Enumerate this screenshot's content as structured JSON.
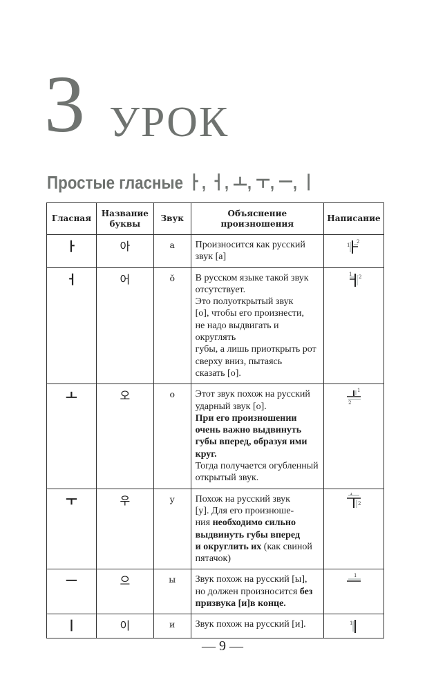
{
  "header": {
    "lesson_number": "3",
    "lesson_word": "УРОК"
  },
  "subtitle": "Простые гласные ㅏ, ㅓ, ㅗ, ㅜ, ㅡ, ㅣ",
  "table": {
    "columns": [
      "Гласная",
      "Название буквы",
      "Звук",
      "Объяснение произношения",
      "Написание"
    ],
    "rows": [
      {
        "vowel": "ㅏ",
        "name": "아",
        "sound": "а",
        "explanation": [
          {
            "text": "Произносится как русский\nзвук [а]",
            "bold": false
          }
        ],
        "strokes": [
          "1",
          "2"
        ],
        "stroke_shape": "a"
      },
      {
        "vowel": "ㅓ",
        "name": "어",
        "sound": "ŏ",
        "explanation": [
          {
            "text": "В русском языке такой звук\nотсутствует.\nЭто полуоткрытый звук\n[о], чтобы его произнести,\nне надо выдвигать и округлять\nгубы, а лишь приоткрыть рот\nсверху вниз, пытаясь\nсказать [о].",
            "bold": false
          }
        ],
        "strokes": [
          "1",
          "2"
        ],
        "stroke_shape": "eo"
      },
      {
        "vowel": "ㅗ",
        "name": "오",
        "sound": "о",
        "explanation": [
          {
            "text": "Этот звук похож на русский\nударный звук [о].\n",
            "bold": false
          },
          {
            "text": "При его произношении\nочень важно выдвинуть\nгубы вперед, образуя ими\nкруг.",
            "bold": true
          },
          {
            "text": "\nТогда получается огубленный\nоткрытый звук.",
            "bold": false
          }
        ],
        "strokes": [
          "1",
          "2"
        ],
        "stroke_shape": "o"
      },
      {
        "vowel": "ㅜ",
        "name": "우",
        "sound": "у",
        "explanation": [
          {
            "text": "Похож на русский звук\n[у]. Для его произноше-\nния ",
            "bold": false
          },
          {
            "text": "необходимо сильно\nвыдвинуть губы вперед\nи округлить их",
            "bold": true
          },
          {
            "text": " (как свиной\nпятачок)",
            "bold": false
          }
        ],
        "strokes": [
          "1",
          "2"
        ],
        "stroke_shape": "u"
      },
      {
        "vowel": "ㅡ",
        "name": "으",
        "sound": "ы",
        "explanation": [
          {
            "text": "Звук похож на русский [ы],\nно должен произносится ",
            "bold": false
          },
          {
            "text": "без\nпризвука [и]в конце.",
            "bold": true
          }
        ],
        "strokes": [
          "1"
        ],
        "stroke_shape": "eu"
      },
      {
        "vowel": "ㅣ",
        "name": "이",
        "sound": "и",
        "explanation": [
          {
            "text": "Звук похож на русский [и].",
            "bold": false
          }
        ],
        "strokes": [
          "1"
        ],
        "stroke_shape": "i"
      }
    ]
  },
  "footer": {
    "page_number": "— 9 —"
  },
  "colors": {
    "heading_gray": "#6f7370",
    "arrow_gray": "#7a8a88"
  }
}
